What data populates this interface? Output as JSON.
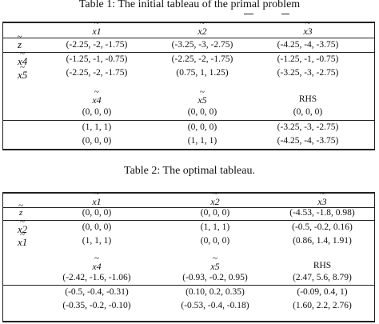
{
  "table1": {
    "caption": "Table 1: The initial tableau of the primal problem",
    "col_headers_top": [
      "x1",
      "x2",
      "x3"
    ],
    "rows_top": [
      {
        "label": "z",
        "cells": [
          "(-2.25, -2, -1.75)",
          "(-3.25, -3, -2.75)",
          "(-4.25, -4, -3.75)"
        ]
      },
      {
        "label": "x4",
        "cells": [
          "(-1.25, -1, -0.75)",
          "(-2.25, -2, -1.75)",
          "(-1.25, -1, -0.75)"
        ]
      },
      {
        "label": "x5",
        "cells": [
          "(-2.25, -2, -1.75)",
          "(0.75, 1, 1.25)",
          "(-3.25, -3, -2.75)"
        ]
      }
    ],
    "col_headers_bottom": [
      "x4",
      "x5",
      "RHS"
    ],
    "rows_bottom": [
      [
        "(0, 0, 0)",
        "(0, 0, 0)",
        "(0, 0, 0)"
      ],
      [
        "(1, 1, 1)",
        "(0, 0, 0)",
        "(-3.25, -3, -2.75)"
      ],
      [
        "(0, 0, 0)",
        "(1, 1, 1)",
        "(-4.25, -4, -3.75)"
      ]
    ]
  },
  "table2": {
    "caption": "Table 2: The optimal tableau.",
    "col_headers_top": [
      "x1",
      "x2",
      "x3"
    ],
    "rows_top": [
      {
        "label": "z",
        "cells": [
          "(0, 0, 0)",
          "(0, 0, 0)",
          "(-4.53, -1.8, 0.98)"
        ]
      },
      {
        "label": "x2",
        "cells": [
          "(0, 0, 0)",
          "(1, 1, 1)",
          "(-0.5, -0.2, 0.16)"
        ]
      },
      {
        "label": "x1",
        "cells": [
          "(1, 1, 1)",
          "(0, 0, 0)",
          "(0.86, 1.4, 1.91)"
        ]
      }
    ],
    "col_headers_bottom": [
      "x4",
      "x5",
      "RHS"
    ],
    "rows_bottom": [
      [
        "(-2.42, -1.6, -1.06)",
        "(-0.93, -0.2, 0.95)",
        "(2.47, 5.6, 8.79)"
      ],
      [
        "(-0.5, -0.4, -0.31)",
        "(0.10, 0.2, 0.35)",
        "(-0.09, 0.4, 1)"
      ],
      [
        "(-0.35, -0.2, -0.10)",
        "(-0.53, -0.4, -0.18)",
        "(1.60, 2.2, 2.76)"
      ]
    ]
  }
}
